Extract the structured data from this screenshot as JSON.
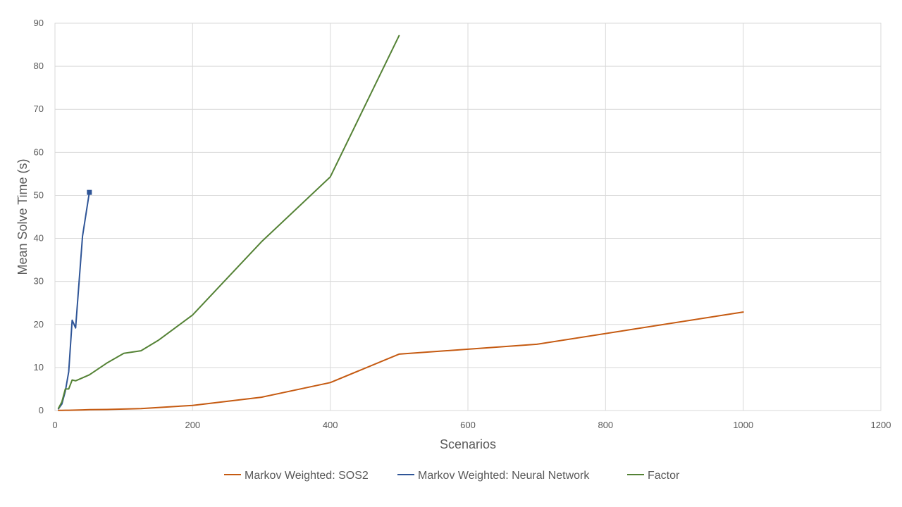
{
  "chart_data": {
    "type": "line",
    "title": "",
    "xlabel": "Scenarios",
    "ylabel": "Mean Solve Time (s)",
    "xlim": [
      0,
      1200
    ],
    "ylim": [
      0,
      90
    ],
    "xticks": [
      0,
      200,
      400,
      600,
      800,
      1000,
      1200
    ],
    "yticks": [
      0,
      10,
      20,
      30,
      40,
      50,
      60,
      70,
      80,
      90
    ],
    "grid": true,
    "legend_position": "bottom",
    "series": [
      {
        "name": "Markov Weighted: SOS2",
        "color": "#C55A11",
        "x": [
          5,
          10,
          15,
          20,
          25,
          30,
          40,
          50,
          75,
          100,
          125,
          150,
          200,
          300,
          400,
          500,
          700,
          1000
        ],
        "y": [
          0.05,
          0.05,
          0.06,
          0.07,
          0.08,
          0.1,
          0.15,
          0.2,
          0.25,
          0.35,
          0.45,
          0.7,
          1.2,
          3.1,
          6.5,
          13.1,
          15.4,
          22.9
        ]
      },
      {
        "name": "Markov Weighted: Neural Network",
        "color": "#2F5597",
        "marker_last": true,
        "x": [
          5,
          10,
          15,
          20,
          25,
          30,
          40,
          50
        ],
        "y": [
          0.4,
          1.5,
          4.5,
          9.0,
          21.0,
          19.2,
          40.5,
          50.7
        ]
      },
      {
        "name": "Factor",
        "color": "#548235",
        "x": [
          5,
          10,
          15,
          20,
          25,
          30,
          40,
          50,
          75,
          100,
          125,
          150,
          200,
          300,
          400,
          500
        ],
        "y": [
          0.5,
          2.0,
          5.0,
          5.0,
          7.1,
          6.9,
          7.6,
          8.3,
          11.0,
          13.3,
          13.9,
          16.3,
          22.2,
          39.2,
          54.3,
          87.1
        ]
      }
    ]
  }
}
